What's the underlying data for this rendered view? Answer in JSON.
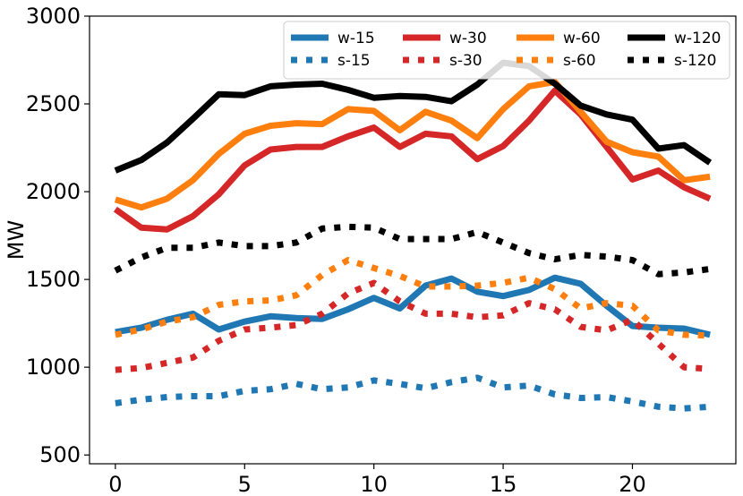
{
  "chart_data": {
    "type": "line",
    "title": "",
    "xlabel": "",
    "ylabel": "MW",
    "xlim": [
      -1,
      24
    ],
    "ylim": [
      450,
      3000
    ],
    "x": [
      0,
      1,
      2,
      3,
      4,
      5,
      6,
      7,
      8,
      9,
      10,
      11,
      12,
      13,
      14,
      15,
      16,
      17,
      18,
      19,
      20,
      21,
      22,
      23
    ],
    "x_ticks": [
      0,
      5,
      10,
      15,
      20
    ],
    "x_tick_labels": [
      "0",
      "5",
      "10",
      "15",
      "20"
    ],
    "y_ticks": [
      500,
      1000,
      1500,
      2000,
      2500,
      3000
    ],
    "y_tick_labels": [
      "500",
      "1000",
      "1500",
      "2000",
      "2500",
      "3000"
    ],
    "legend_position": "top-right",
    "series": [
      {
        "name": "w-15",
        "color": "#1f77b4",
        "style": "solid",
        "values": [
          1200,
          1225,
          1270,
          1305,
          1215,
          1260,
          1290,
          1280,
          1275,
          1330,
          1395,
          1335,
          1465,
          1505,
          1430,
          1405,
          1440,
          1510,
          1475,
          1350,
          1235,
          1225,
          1220,
          1185
        ]
      },
      {
        "name": "s-15",
        "color": "#1f77b4",
        "style": "dotted",
        "values": [
          795,
          815,
          830,
          835,
          835,
          865,
          875,
          905,
          875,
          885,
          925,
          905,
          880,
          915,
          940,
          885,
          895,
          845,
          825,
          830,
          805,
          775,
          765,
          775
        ]
      },
      {
        "name": "w-30",
        "color": "#d62728",
        "style": "solid",
        "values": [
          1900,
          1795,
          1785,
          1860,
          1985,
          2150,
          2240,
          2255,
          2255,
          2315,
          2365,
          2255,
          2330,
          2315,
          2185,
          2260,
          2405,
          2575,
          2440,
          2255,
          2070,
          2120,
          2025,
          1960
        ]
      },
      {
        "name": "s-30",
        "color": "#d62728",
        "style": "dotted",
        "values": [
          985,
          995,
          1025,
          1055,
          1150,
          1215,
          1225,
          1240,
          1305,
          1420,
          1480,
          1375,
          1305,
          1305,
          1285,
          1295,
          1365,
          1330,
          1230,
          1210,
          1270,
          1135,
          1000,
          990
        ]
      },
      {
        "name": "w-60",
        "color": "#ff7f0e",
        "style": "solid",
        "values": [
          1955,
          1910,
          1960,
          2065,
          2215,
          2330,
          2375,
          2390,
          2385,
          2470,
          2460,
          2350,
          2455,
          2405,
          2305,
          2470,
          2600,
          2625,
          2455,
          2285,
          2225,
          2200,
          2065,
          2085
        ]
      },
      {
        "name": "s-60",
        "color": "#ff7f0e",
        "style": "dotted",
        "values": [
          1185,
          1215,
          1260,
          1285,
          1355,
          1375,
          1380,
          1410,
          1525,
          1610,
          1565,
          1520,
          1460,
          1460,
          1465,
          1480,
          1510,
          1445,
          1335,
          1365,
          1350,
          1210,
          1185,
          1180
        ]
      },
      {
        "name": "w-120",
        "color": "#000000",
        "style": "solid",
        "values": [
          2120,
          2180,
          2280,
          2415,
          2555,
          2550,
          2600,
          2610,
          2615,
          2580,
          2535,
          2545,
          2540,
          2515,
          2610,
          2735,
          2715,
          2615,
          2490,
          2440,
          2410,
          2245,
          2265,
          2165
        ]
      },
      {
        "name": "s-120",
        "color": "#000000",
        "style": "dotted",
        "values": [
          1550,
          1625,
          1680,
          1680,
          1710,
          1690,
          1690,
          1710,
          1790,
          1800,
          1795,
          1730,
          1730,
          1730,
          1770,
          1710,
          1650,
          1615,
          1640,
          1630,
          1610,
          1530,
          1540,
          1560
        ]
      }
    ]
  }
}
